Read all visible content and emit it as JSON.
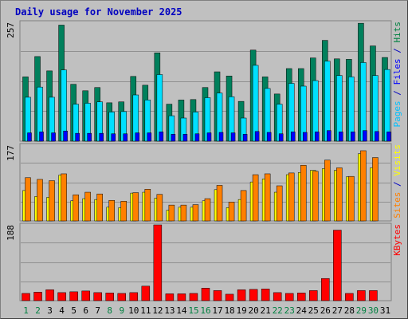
{
  "chart_data": {
    "type": "bar",
    "title": "Daily usage for November 2025",
    "categories": [
      "1",
      "2",
      "3",
      "4",
      "5",
      "6",
      "7",
      "8",
      "9",
      "10",
      "11",
      "12",
      "13",
      "14",
      "15",
      "16",
      "17",
      "18",
      "19",
      "20",
      "21",
      "22",
      "23",
      "24",
      "25",
      "26",
      "27",
      "28",
      "29",
      "30",
      "31"
    ],
    "weekend_days": [
      "1",
      "2",
      "8",
      "9",
      "15",
      "16",
      "22",
      "23",
      "29",
      "30"
    ],
    "panels": [
      {
        "id": "hits",
        "ymax_label": "257",
        "ymax": 257,
        "side_labels": [
          {
            "text": "Pages",
            "color": "#00c0ff"
          },
          {
            "text": " / ",
            "color": "#0000c0"
          },
          {
            "text": "Files",
            "color": "#0000ff"
          },
          {
            "text": " / ",
            "color": "#0000c0"
          },
          {
            "text": "Hits",
            "color": "#008040"
          }
        ],
        "series": [
          {
            "name": "Hits",
            "color": "#00805c",
            "values": [
              139,
              183,
              152,
              251,
              123,
              109,
              116,
              83,
              85,
              140,
              121,
              191,
              80,
              89,
              90,
              116,
              150,
              141,
              86,
              197,
              139,
              102,
              157,
              157,
              180,
              218,
              178,
              177,
              255,
              206,
              181
            ]
          },
          {
            "name": "Files",
            "color": "#00e0ff",
            "values": [
              95,
              117,
              95,
              154,
              80,
              82,
              85,
              63,
              64,
              100,
              89,
              144,
              55,
              50,
              63,
              94,
              104,
              96,
              50,
              164,
              114,
              80,
              125,
              119,
              131,
              173,
              142,
              139,
              170,
              142,
              155
            ]
          },
          {
            "name": "Pages",
            "color": "#0000ff",
            "values": [
              18,
              20,
              18,
              22,
              17,
              17,
              17,
              16,
              16,
              18,
              18,
              20,
              15,
              15,
              16,
              18,
              19,
              18,
              15,
              21,
              19,
              16,
              20,
              19,
              20,
              23,
              20,
              20,
              23,
              21,
              20
            ]
          }
        ]
      },
      {
        "id": "visits",
        "ymax_label": "177",
        "ymax": 177,
        "side_labels": [
          {
            "text": "Sites",
            "color": "#ff8000"
          },
          {
            "text": " / ",
            "color": "#0000c0"
          },
          {
            "text": "Visits",
            "color": "#ffff00"
          }
        ],
        "series": [
          {
            "name": "Visits",
            "color": "#ffff00",
            "values": [
              71,
              57,
              55,
              107,
              47,
              52,
              50,
              32,
              31,
              65,
              67,
              53,
              25,
              32,
              32,
              47,
              73,
              31,
              50,
              91,
              98,
              67,
              108,
              113,
              118,
              122,
              118,
              103,
              157,
              124,
              0
            ]
          },
          {
            "name": "Sites",
            "color": "#ff8000",
            "values": [
              101,
              97,
              94,
              110,
              61,
              67,
              63,
              48,
              46,
              66,
              74,
              62,
              37,
              37,
              38,
              52,
              83,
              44,
              71,
              108,
              110,
              82,
              112,
              130,
              116,
              142,
              124,
              104,
              164,
              148,
              0
            ]
          }
        ]
      },
      {
        "id": "kbytes",
        "ymax_label": "188",
        "ymax": 188,
        "side_labels": [
          {
            "text": "KBytes",
            "color": "#ff0000"
          }
        ],
        "series": [
          {
            "name": "KBytes",
            "color": "#ff0000",
            "values": [
              18,
              21,
              27,
              20,
              22,
              24,
              20,
              19,
              18,
              20,
              36,
              188,
              17,
              17,
              18,
              31,
              25,
              16,
              27,
              28,
              29,
              20,
              18,
              19,
              25,
              55,
              175,
              18,
              25,
              25,
              0
            ]
          }
        ]
      }
    ],
    "x_label_color_weekday": "#000000",
    "x_label_color_weekend": "#008040"
  }
}
